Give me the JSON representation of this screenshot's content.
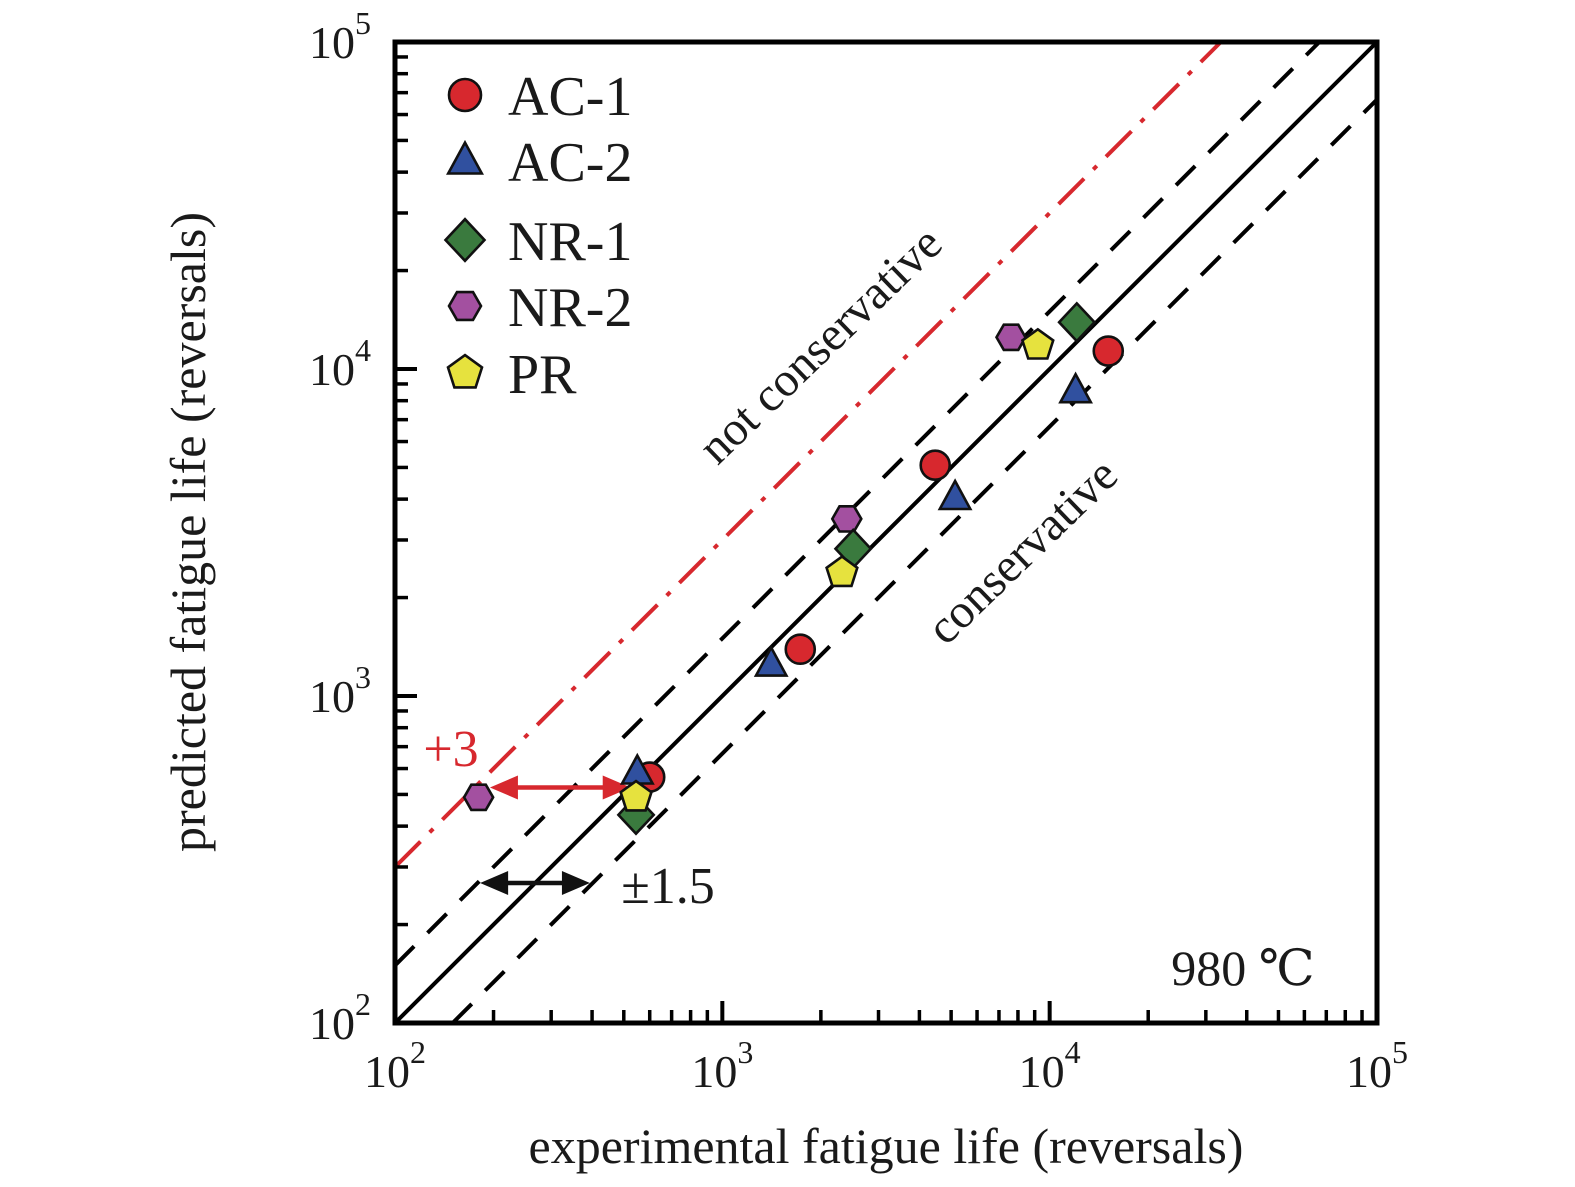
{
  "figure": {
    "temperature_label": "980 ℃"
  },
  "chart_data": {
    "type": "scatter",
    "x_scale": "log",
    "y_scale": "log",
    "xlim": [
      100,
      100000
    ],
    "ylim": [
      100,
      100000
    ],
    "xlabel": "experimental fatigue life (reversals)",
    "ylabel": "predicted fatigue life (reversals)",
    "grid": false,
    "legend_position": "upper-left-inside",
    "tick_base": "10",
    "axis_tick_exponents": [
      2,
      3,
      4,
      5
    ],
    "series": [
      {
        "name": "AC-1",
        "marker": "circle",
        "color": "#d7282e",
        "points": [
          [
            600,
            565
          ],
          [
            1730,
            1390
          ],
          [
            4470,
            5080
          ],
          [
            15100,
            11350
          ]
        ]
      },
      {
        "name": "AC-2",
        "marker": "triangle",
        "color": "#30509f",
        "points": [
          [
            550,
            585
          ],
          [
            1410,
            1250
          ],
          [
            5140,
            4040
          ],
          [
            12000,
            8570
          ]
        ]
      },
      {
        "name": "NR-1",
        "marker": "diamond",
        "color": "#3a7a3e",
        "points": [
          [
            545,
            433
          ],
          [
            2510,
            2820
          ],
          [
            12100,
            13900
          ]
        ]
      },
      {
        "name": "NR-2",
        "marker": "hexagon",
        "color": "#a350a0",
        "points": [
          [
            180,
            490
          ],
          [
            2400,
            3480
          ],
          [
            7620,
            12500
          ]
        ]
      },
      {
        "name": "PR",
        "marker": "pentagon",
        "color": "#e6e23e",
        "points": [
          [
            545,
            490
          ],
          [
            2320,
            2380
          ],
          [
            9200,
            11800
          ]
        ]
      }
    ],
    "reference_lines": [
      {
        "name": "identity-line",
        "factor": 1,
        "style": "solid",
        "color": "#000000"
      },
      {
        "name": "upper-1.5x-line",
        "factor": 1.5,
        "style": "dashed",
        "color": "#000000"
      },
      {
        "name": "lower-1.5x-line",
        "factor": 0.6667,
        "style": "dashed",
        "color": "#000000"
      },
      {
        "name": "3x-line",
        "factor": 3,
        "style": "dashdot",
        "color": "#d7282e"
      }
    ],
    "region_labels": {
      "not_conservative": "not conservative",
      "conservative": "conservative"
    },
    "factor_labels": {
      "plus_three": "+3",
      "plus_minus_1_5": "±1.5"
    },
    "arrows": [
      {
        "name": "factor-3-span-arrow",
        "color": "#d7282e",
        "from": [
          195,
          525
        ],
        "to": [
          525,
          525
        ]
      },
      {
        "name": "factor-1.5-span-arrow",
        "color": "#111111",
        "from": [
          182,
          268
        ],
        "to": [
          394,
          268
        ]
      }
    ]
  }
}
